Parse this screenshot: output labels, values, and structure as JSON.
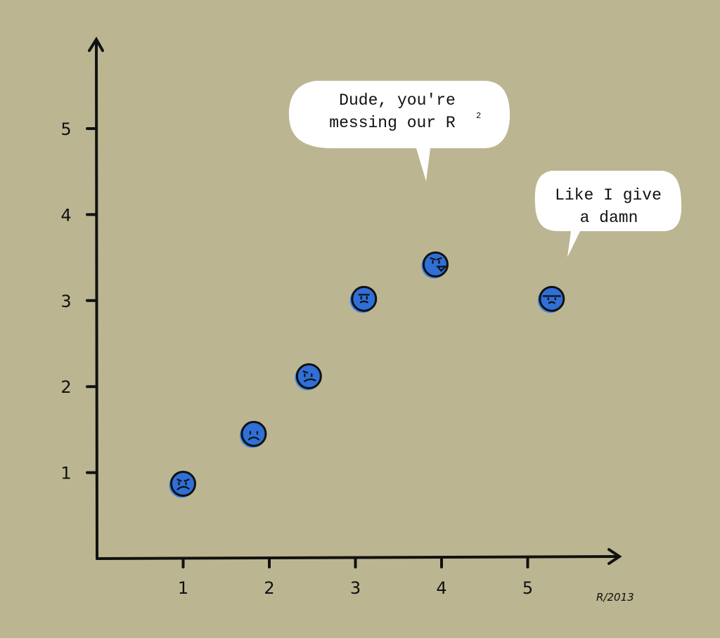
{
  "chart_data": {
    "type": "scatter",
    "title": "",
    "xlabel": "",
    "ylabel": "",
    "xlim": [
      0,
      5.9
    ],
    "ylim": [
      0,
      5.9
    ],
    "x_ticks": [
      "1",
      "2",
      "3",
      "4",
      "5"
    ],
    "y_ticks": [
      "1",
      "2",
      "3",
      "4",
      "5"
    ],
    "grid": false,
    "points": [
      {
        "x": 1.0,
        "y": 0.87
      },
      {
        "x": 1.82,
        "y": 1.45
      },
      {
        "x": 2.46,
        "y": 2.12
      },
      {
        "x": 3.1,
        "y": 3.02
      },
      {
        "x": 3.93,
        "y": 3.42
      },
      {
        "x": 5.28,
        "y": 3.02
      }
    ],
    "point_color": "#2f6fd6",
    "annotations": [
      {
        "lines": [
          "Dude, you're",
          "messing our R"
        ],
        "superscript": "2"
      },
      {
        "lines": [
          "Like I give",
          "a damn"
        ]
      }
    ],
    "signature": "R/2013"
  }
}
